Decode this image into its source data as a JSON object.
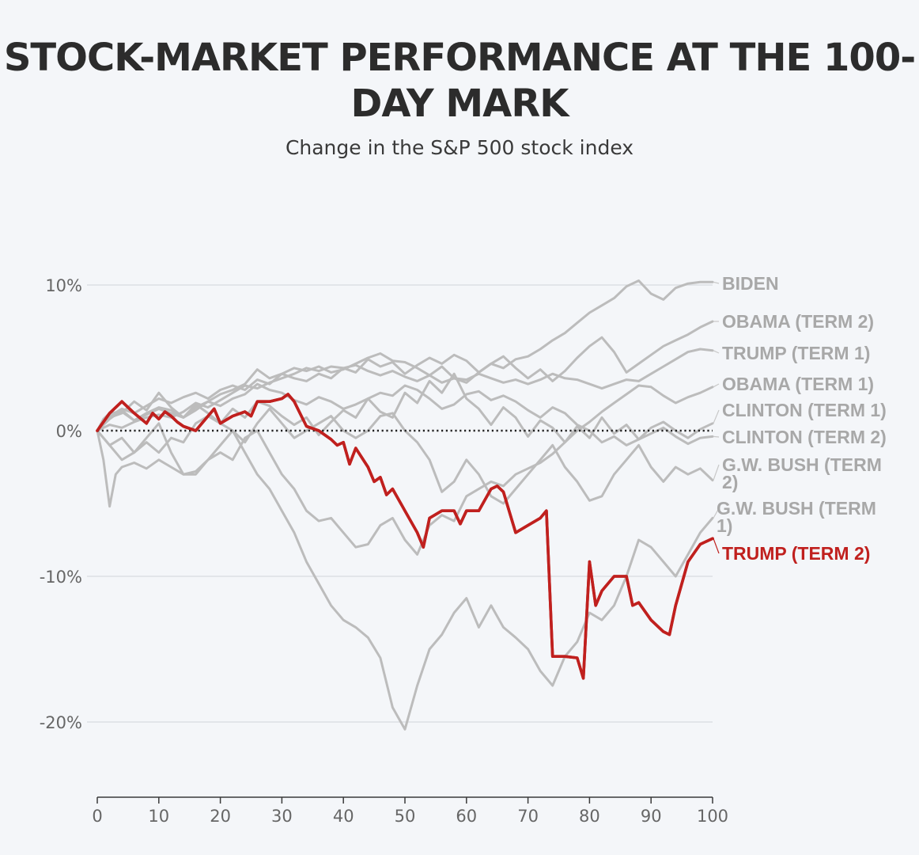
{
  "chart_data": {
    "type": "line",
    "title": "STOCK-MARKET PERFORMANCE AT THE 100-DAY MARK",
    "subtitle": "Change in the S&P 500 stock index",
    "xlabel": "",
    "ylabel": "",
    "xlim": [
      0,
      100
    ],
    "ylim": [
      -26,
      12
    ],
    "x_ticks": [
      0,
      10,
      20,
      30,
      40,
      50,
      60,
      70,
      80,
      90,
      100
    ],
    "y_ticks": [
      {
        "value": 10,
        "label": "10%"
      },
      {
        "value": 0,
        "label": "0%"
      },
      {
        "value": -10,
        "label": "-10%"
      },
      {
        "value": -20,
        "label": "-20%"
      }
    ],
    "grid": "horizontal",
    "baseline": "dotted line at 0%",
    "legend": "direct labels at right end of lines",
    "colors": {
      "highlight": "#c0201e",
      "others": "#bcbcbc",
      "label_gray": "#a8a8a8"
    },
    "series": [
      {
        "name": "BIDEN",
        "color": "#bcbcbc",
        "label_lines": [
          "BIDEN"
        ],
        "x": [
          0,
          1,
          2,
          4,
          6,
          8,
          10,
          12,
          14,
          16,
          18,
          20,
          22,
          24,
          26,
          28,
          30,
          32,
          34,
          36,
          38,
          40,
          42,
          44,
          46,
          48,
          50,
          52,
          54,
          56,
          58,
          60,
          62,
          64,
          66,
          68,
          70,
          72,
          74,
          76,
          78,
          80,
          82,
          84,
          86,
          88,
          90,
          92,
          94,
          96,
          98,
          100
        ],
        "y": [
          0,
          0.8,
          1.2,
          1.3,
          0.7,
          1.2,
          1.6,
          1.4,
          0.9,
          1.4,
          2.0,
          2.5,
          2.8,
          3.2,
          4.2,
          3.6,
          3.9,
          4.3,
          4.1,
          4.4,
          4.0,
          4.2,
          4.6,
          5.0,
          5.3,
          4.8,
          4.7,
          4.3,
          3.8,
          4.4,
          3.6,
          3.3,
          4.0,
          4.6,
          4.3,
          4.9,
          5.1,
          5.6,
          6.2,
          6.7,
          7.4,
          8.1,
          8.6,
          9.1,
          9.9,
          10.3,
          9.4,
          9.0,
          9.8,
          10.1,
          10.2,
          10.2
        ]
      },
      {
        "name": "OBAMA (TERM 2)",
        "color": "#bcbcbc",
        "label_lines": [
          "OBAMA (TERM 2)"
        ],
        "x": [
          0,
          2,
          4,
          6,
          8,
          10,
          12,
          14,
          16,
          18,
          20,
          22,
          24,
          26,
          28,
          30,
          32,
          34,
          36,
          38,
          40,
          42,
          44,
          46,
          48,
          50,
          52,
          54,
          56,
          58,
          60,
          62,
          64,
          66,
          68,
          70,
          72,
          74,
          76,
          78,
          80,
          82,
          84,
          86,
          88,
          90,
          92,
          94,
          96,
          98,
          100
        ],
        "y": [
          0,
          1.0,
          1.5,
          1.2,
          1.7,
          2.2,
          1.9,
          2.3,
          2.6,
          2.2,
          2.8,
          3.1,
          2.8,
          3.5,
          3.2,
          3.9,
          3.6,
          3.4,
          3.9,
          3.6,
          4.3,
          4.0,
          4.9,
          4.4,
          4.7,
          3.9,
          4.5,
          5.0,
          4.6,
          5.2,
          4.8,
          4.0,
          4.6,
          5.1,
          4.3,
          3.6,
          4.2,
          3.4,
          4.1,
          5.0,
          5.8,
          6.4,
          5.4,
          4.0,
          4.6,
          5.2,
          5.8,
          6.2,
          6.6,
          7.1,
          7.5
        ]
      },
      {
        "name": "TRUMP (TERM 1)",
        "color": "#bcbcbc",
        "label_lines": [
          "TRUMP (TERM 1)"
        ],
        "x": [
          0,
          2,
          4,
          6,
          8,
          10,
          12,
          14,
          16,
          18,
          20,
          22,
          24,
          26,
          28,
          30,
          32,
          34,
          36,
          38,
          40,
          42,
          44,
          46,
          48,
          50,
          52,
          54,
          56,
          58,
          60,
          62,
          64,
          66,
          68,
          70,
          72,
          74,
          76,
          78,
          80,
          82,
          84,
          86,
          88,
          90,
          92,
          94,
          96,
          98,
          100
        ],
        "y": [
          0,
          0.4,
          0.2,
          0.6,
          0.9,
          1.1,
          0.9,
          1.3,
          1.9,
          1.6,
          2.1,
          2.6,
          3.1,
          2.9,
          3.3,
          3.6,
          3.9,
          4.3,
          4.1,
          4.4,
          4.3,
          4.5,
          4.1,
          3.8,
          4.1,
          3.7,
          3.4,
          3.8,
          3.3,
          3.6,
          3.5,
          3.9,
          3.6,
          3.3,
          3.5,
          3.2,
          3.5,
          3.9,
          3.6,
          3.5,
          3.2,
          2.9,
          3.2,
          3.5,
          3.4,
          3.9,
          4.4,
          4.9,
          5.4,
          5.6,
          5.5
        ]
      },
      {
        "name": "OBAMA (TERM 1)",
        "color": "#bcbcbc",
        "label_lines": [
          "OBAMA (TERM 1)"
        ],
        "x": [
          0,
          1,
          2,
          3,
          4,
          6,
          8,
          10,
          12,
          14,
          16,
          18,
          20,
          22,
          24,
          26,
          28,
          30,
          32,
          34,
          36,
          38,
          40,
          42,
          44,
          46,
          48,
          50,
          52,
          54,
          56,
          58,
          60,
          62,
          64,
          66,
          68,
          70,
          72,
          74,
          76,
          78,
          80,
          82,
          84,
          86,
          88,
          90,
          92,
          94,
          96,
          98,
          100
        ],
        "y": [
          0,
          -2.0,
          -5.2,
          -3.0,
          -2.5,
          -2.2,
          -2.6,
          -2.0,
          -2.5,
          -3.0,
          -2.8,
          -2.0,
          -1.5,
          -2.0,
          -0.5,
          0.0,
          -1.5,
          -3.0,
          -4.0,
          -5.5,
          -6.2,
          -6.0,
          -7.0,
          -8.0,
          -7.8,
          -6.5,
          -6.0,
          -7.5,
          -8.5,
          -6.5,
          -5.8,
          -6.2,
          -4.5,
          -4.0,
          -3.5,
          -3.8,
          -3.0,
          -2.6,
          -2.2,
          -1.6,
          -0.8,
          0.0,
          0.6,
          1.3,
          1.9,
          2.5,
          3.1,
          3.0,
          2.4,
          1.9,
          2.3,
          2.6,
          3.0
        ]
      },
      {
        "name": "CLINTON (TERM 1)",
        "color": "#bcbcbc",
        "label_lines": [
          "CLINTON (TERM 1)"
        ],
        "x": [
          0,
          2,
          4,
          6,
          8,
          10,
          12,
          14,
          16,
          18,
          20,
          22,
          24,
          26,
          28,
          30,
          32,
          34,
          36,
          38,
          40,
          42,
          44,
          46,
          48,
          50,
          52,
          54,
          56,
          58,
          60,
          62,
          64,
          66,
          68,
          70,
          72,
          74,
          76,
          78,
          80,
          82,
          84,
          86,
          88,
          90,
          92,
          94,
          96,
          98,
          100
        ],
        "y": [
          0,
          0.8,
          1.4,
          0.7,
          1.1,
          1.5,
          1.2,
          0.9,
          1.6,
          2.0,
          1.7,
          2.2,
          2.5,
          3.2,
          2.8,
          2.6,
          2.1,
          1.8,
          2.3,
          2.0,
          1.5,
          1.8,
          2.2,
          2.6,
          2.4,
          3.1,
          2.8,
          2.2,
          1.5,
          1.8,
          2.5,
          2.7,
          2.1,
          2.4,
          2.0,
          1.4,
          0.9,
          1.6,
          1.2,
          0.4,
          0.0,
          -0.8,
          -0.4,
          -1.0,
          -0.6,
          0.2,
          0.6,
          0.0,
          -0.5,
          0.1,
          0.5
        ]
      },
      {
        "name": "CLINTON (TERM 2)",
        "color": "#bcbcbc",
        "label_lines": [
          "CLINTON (TERM 2)"
        ],
        "x": [
          0,
          2,
          4,
          6,
          8,
          10,
          12,
          14,
          16,
          18,
          20,
          22,
          24,
          26,
          28,
          30,
          32,
          34,
          36,
          38,
          40,
          42,
          44,
          46,
          48,
          50,
          52,
          54,
          56,
          58,
          60,
          62,
          64,
          66,
          68,
          70,
          72,
          74,
          76,
          78,
          80,
          82,
          84,
          86,
          88,
          90,
          92,
          94,
          96,
          98,
          100
        ],
        "y": [
          0,
          0.9,
          1.2,
          2.0,
          1.4,
          2.6,
          1.6,
          0.9,
          1.8,
          1.2,
          0.5,
          1.5,
          0.9,
          2.0,
          1.7,
          1.0,
          0.4,
          0.9,
          -0.3,
          0.6,
          1.4,
          0.9,
          2.2,
          1.3,
          0.9,
          2.6,
          1.9,
          3.4,
          2.6,
          3.9,
          2.2,
          1.5,
          0.4,
          1.6,
          0.9,
          -0.4,
          0.7,
          0.2,
          -0.8,
          0.3,
          -0.5,
          0.9,
          -0.2,
          0.4,
          -0.6,
          -0.2,
          0.2,
          -0.4,
          -0.9,
          -0.5,
          -0.4
        ]
      },
      {
        "name": "G.W. BUSH (TERM 2)",
        "color": "#bcbcbc",
        "label_lines": [
          "G.W. BUSH (TERM",
          "2)"
        ],
        "x": [
          0,
          2,
          4,
          6,
          8,
          10,
          12,
          14,
          16,
          18,
          20,
          22,
          24,
          26,
          28,
          30,
          32,
          34,
          36,
          38,
          40,
          42,
          44,
          46,
          48,
          50,
          52,
          54,
          56,
          58,
          60,
          62,
          64,
          66,
          68,
          70,
          72,
          74,
          76,
          78,
          80,
          82,
          84,
          86,
          88,
          90,
          92,
          94,
          96,
          98,
          100
        ],
        "y": [
          0,
          -1.0,
          -2.0,
          -1.5,
          -0.5,
          0.5,
          -1.5,
          -3.0,
          -3.0,
          -2.0,
          -1.0,
          0.0,
          -0.8,
          0.5,
          1.5,
          0.5,
          -0.5,
          0.0,
          0.5,
          1.0,
          0.0,
          -0.5,
          0.0,
          1.0,
          1.2,
          0.0,
          -0.8,
          -2.0,
          -4.2,
          -3.5,
          -2.0,
          -3.0,
          -4.5,
          -5.0,
          -4.0,
          -3.0,
          -2.0,
          -1.0,
          -2.5,
          -3.5,
          -4.8,
          -4.5,
          -3.0,
          -2.0,
          -1.0,
          -2.5,
          -3.5,
          -2.5,
          -3.0,
          -2.6,
          -3.4
        ]
      },
      {
        "name": "G.W. BUSH (TERM 1)",
        "color": "#bcbcbc",
        "label_lines": [
          "G.W. BUSH (TERM",
          "1)"
        ],
        "x": [
          0,
          2,
          4,
          6,
          8,
          10,
          12,
          14,
          16,
          18,
          20,
          22,
          24,
          26,
          28,
          30,
          32,
          34,
          36,
          38,
          40,
          42,
          44,
          46,
          48,
          50,
          52,
          54,
          56,
          58,
          60,
          62,
          64,
          66,
          68,
          70,
          72,
          74,
          76,
          78,
          80,
          82,
          84,
          86,
          88,
          90,
          92,
          94,
          96,
          98,
          100
        ],
        "y": [
          0,
          -1.0,
          -0.5,
          -1.5,
          -0.8,
          -1.5,
          -0.5,
          -0.8,
          0.5,
          1.0,
          0.5,
          0.0,
          -1.5,
          -3.0,
          -4.0,
          -5.5,
          -7.0,
          -9.0,
          -10.5,
          -12.0,
          -13.0,
          -13.5,
          -14.2,
          -15.6,
          -19.0,
          -20.5,
          -17.5,
          -15.0,
          -14.0,
          -12.5,
          -11.5,
          -13.5,
          -12.0,
          -13.5,
          -14.2,
          -15.0,
          -16.5,
          -17.5,
          -15.5,
          -14.5,
          -12.5,
          -13.0,
          -12.0,
          -10.0,
          -7.5,
          -8.0,
          -9.0,
          -10.0,
          -8.5,
          -7.0,
          -6.0
        ]
      },
      {
        "name": "TRUMP (TERM 2)",
        "color": "#c0201e",
        "highlight": true,
        "label_lines": [
          "TRUMP (TERM 2)"
        ],
        "x": [
          0,
          2,
          4,
          6,
          8,
          9,
          10,
          11,
          12,
          13,
          14,
          16,
          18,
          19,
          20,
          22,
          24,
          25,
          26,
          28,
          30,
          31,
          32,
          34,
          36,
          38,
          39,
          40,
          41,
          42,
          44,
          45,
          46,
          47,
          48,
          50,
          52,
          53,
          54,
          56,
          58,
          59,
          60,
          62,
          64,
          65,
          66,
          68,
          70,
          72,
          73,
          74,
          75,
          76,
          78,
          79,
          80,
          81,
          82,
          84,
          86,
          87,
          88,
          90,
          92,
          93,
          94,
          96,
          98,
          100
        ],
        "y": [
          0,
          1.2,
          2.0,
          1.2,
          0.5,
          1.2,
          0.8,
          1.3,
          1.0,
          0.6,
          0.3,
          0.0,
          1.0,
          1.5,
          0.5,
          1.0,
          1.3,
          1.0,
          2.0,
          2.0,
          2.2,
          2.5,
          2.0,
          0.3,
          0.0,
          -0.6,
          -1.0,
          -0.8,
          -2.3,
          -1.2,
          -2.5,
          -3.5,
          -3.2,
          -4.4,
          -4.0,
          -5.5,
          -7.0,
          -8.0,
          -6.0,
          -5.5,
          -5.5,
          -6.4,
          -5.5,
          -5.5,
          -4.0,
          -3.8,
          -4.2,
          -7.0,
          -6.5,
          -6.0,
          -5.5,
          -15.5,
          -15.5,
          -15.5,
          -15.6,
          -17.0,
          -9.0,
          -12.0,
          -11.0,
          -10.0,
          -10.0,
          -12.0,
          -11.8,
          -13.0,
          -13.8,
          -14.0,
          -12.0,
          -9.0,
          -7.8,
          -7.4
        ]
      }
    ]
  }
}
